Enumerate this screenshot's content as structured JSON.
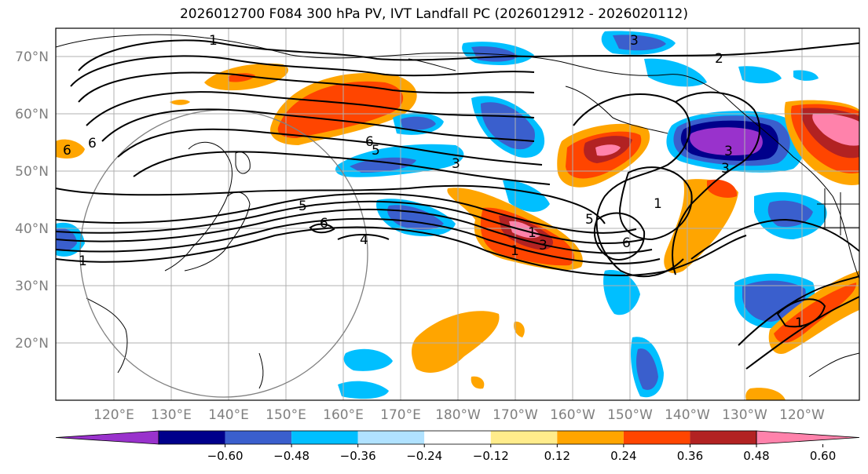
{
  "title": "2026012700 F084 300 hPa PV, IVT Landfall PC (2026012912 - 2026020112)",
  "lat_labels": [
    "70°N",
    "60°N",
    "50°N",
    "40°N",
    "30°N",
    "20°N"
  ],
  "lon_labels": [
    "120°E",
    "130°E",
    "140°E",
    "150°E",
    "160°E",
    "170°E",
    "180°W",
    "170°W",
    "160°W",
    "150°W",
    "140°W",
    "130°W",
    "120°W"
  ],
  "colorbar": {
    "ticks": [
      "−0.60",
      "−0.48",
      "−0.36",
      "−0.24",
      "−0.12",
      "0.12",
      "0.24",
      "0.36",
      "0.48",
      "0.60"
    ],
    "colors": [
      "#9932cc",
      "#00008b",
      "#3a5fcd",
      "#00bfff",
      "#b0e2ff",
      "#ffffff",
      "#ffec8b",
      "#ffa500",
      "#ff4500",
      "#b22222",
      "#ff82ab"
    ]
  },
  "contour_labels": [
    "1",
    "2",
    "3",
    "3",
    "4",
    "5",
    "5",
    "6",
    "6",
    "6",
    "1",
    "1",
    "3",
    "3",
    "1",
    "1",
    "5",
    "6",
    "1",
    "3",
    "6"
  ],
  "colors": {
    "land_outline": "#000000",
    "grid": "#b0b0b0",
    "circle": "#808080"
  }
}
